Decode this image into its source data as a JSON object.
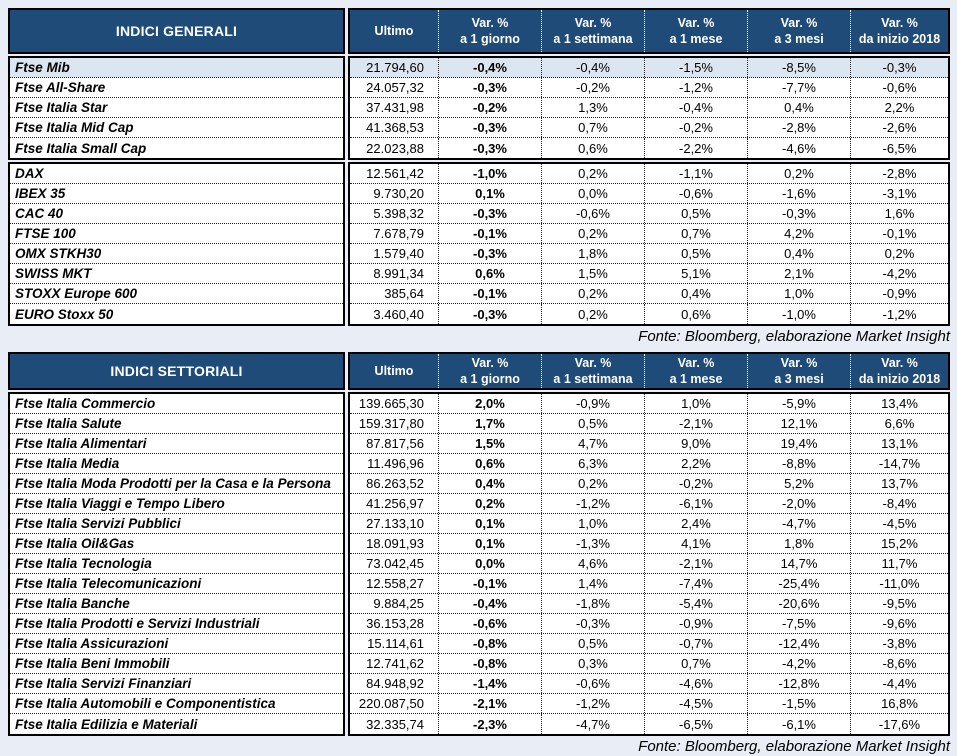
{
  "colors": {
    "header_bg": "#1F4B78",
    "highlight_row": "#DCE6F1",
    "page_bg": "#E9EDF5"
  },
  "source_note": "Fonte: Bloomberg, elaborazione Market Insight",
  "columns": [
    {
      "line1": "Ultimo",
      "line2": ""
    },
    {
      "line1": "Var. %",
      "line2": "a 1 giorno"
    },
    {
      "line1": "Var. %",
      "line2": "a 1 settimana"
    },
    {
      "line1": "Var. %",
      "line2": "a 1 mese"
    },
    {
      "line1": "Var. %",
      "line2": "a 3 mesi"
    },
    {
      "line1": "Var. %",
      "line2": "da inizio 2018"
    }
  ],
  "generali": {
    "title": "INDICI GENERALI",
    "groups": [
      {
        "rows": [
          {
            "label": "Ftse Mib",
            "highlight": true,
            "values": [
              "21.794,60",
              "-0,4%",
              "-0,4%",
              "-1,5%",
              "-8,5%",
              "-0,3%"
            ]
          },
          {
            "label": "Ftse All-Share",
            "values": [
              "24.057,32",
              "-0,3%",
              "-0,2%",
              "-1,2%",
              "-7,7%",
              "-0,6%"
            ]
          },
          {
            "label": "Ftse Italia Star",
            "values": [
              "37.431,98",
              "-0,2%",
              "1,3%",
              "-0,4%",
              "0,4%",
              "2,2%"
            ]
          },
          {
            "label": "Ftse Italia Mid Cap",
            "values": [
              "41.368,53",
              "-0,3%",
              "0,7%",
              "-0,2%",
              "-2,8%",
              "-2,6%"
            ]
          },
          {
            "label": "Ftse Italia Small Cap",
            "values": [
              "22.023,88",
              "-0,3%",
              "0,6%",
              "-2,2%",
              "-4,6%",
              "-6,5%"
            ]
          }
        ]
      },
      {
        "rows": [
          {
            "label": "DAX",
            "values": [
              "12.561,42",
              "-1,0%",
              "0,2%",
              "-1,1%",
              "0,2%",
              "-2,8%"
            ]
          },
          {
            "label": "IBEX 35",
            "values": [
              "9.730,20",
              "0,1%",
              "0,0%",
              "-0,6%",
              "-1,6%",
              "-3,1%"
            ]
          },
          {
            "label": "CAC 40",
            "values": [
              "5.398,32",
              "-0,3%",
              "-0,6%",
              "0,5%",
              "-0,3%",
              "1,6%"
            ]
          },
          {
            "label": "FTSE 100",
            "values": [
              "7.678,79",
              "-0,1%",
              "0,2%",
              "0,7%",
              "4,2%",
              "-0,1%"
            ]
          },
          {
            "label": "OMX STKH30",
            "values": [
              "1.579,40",
              "-0,3%",
              "1,8%",
              "0,5%",
              "0,4%",
              "0,2%"
            ]
          },
          {
            "label": "SWISS MKT",
            "values": [
              "8.991,34",
              "0,6%",
              "1,5%",
              "5,1%",
              "2,1%",
              "-4,2%"
            ]
          },
          {
            "label": "STOXX Europe 600",
            "values": [
              "385,64",
              "-0,1%",
              "0,2%",
              "0,4%",
              "1,0%",
              "-0,9%"
            ]
          },
          {
            "label": "EURO Stoxx 50",
            "values": [
              "3.460,40",
              "-0,3%",
              "0,2%",
              "0,6%",
              "-1,0%",
              "-1,2%"
            ]
          }
        ]
      }
    ]
  },
  "settoriali": {
    "title": "INDICI SETTORIALI",
    "groups": [
      {
        "rows": [
          {
            "label": "Ftse Italia Commercio",
            "values": [
              "139.665,30",
              "2,0%",
              "-0,9%",
              "1,0%",
              "-5,9%",
              "13,4%"
            ]
          },
          {
            "label": "Ftse Italia Salute",
            "values": [
              "159.317,80",
              "1,7%",
              "0,5%",
              "-2,1%",
              "12,1%",
              "6,6%"
            ]
          },
          {
            "label": "Ftse Italia Alimentari",
            "values": [
              "87.817,56",
              "1,5%",
              "4,7%",
              "9,0%",
              "19,4%",
              "13,1%"
            ]
          },
          {
            "label": "Ftse Italia Media",
            "values": [
              "11.496,96",
              "0,6%",
              "6,3%",
              "2,2%",
              "-8,8%",
              "-14,7%"
            ]
          },
          {
            "label": "Ftse Italia Moda Prodotti per la Casa e la Persona",
            "values": [
              "86.263,52",
              "0,4%",
              "0,2%",
              "-0,2%",
              "5,2%",
              "13,7%"
            ]
          },
          {
            "label": "Ftse Italia Viaggi e Tempo Libero",
            "values": [
              "41.256,97",
              "0,2%",
              "-1,2%",
              "-6,1%",
              "-2,0%",
              "-8,4%"
            ]
          },
          {
            "label": "Ftse Italia Servizi Pubblici",
            "values": [
              "27.133,10",
              "0,1%",
              "1,0%",
              "2,4%",
              "-4,7%",
              "-4,5%"
            ]
          },
          {
            "label": "Ftse Italia Oil&Gas",
            "values": [
              "18.091,93",
              "0,1%",
              "-1,3%",
              "4,1%",
              "1,8%",
              "15,2%"
            ]
          },
          {
            "label": "Ftse Italia Tecnologia",
            "values": [
              "73.042,45",
              "0,0%",
              "4,6%",
              "-2,1%",
              "14,7%",
              "11,7%"
            ]
          },
          {
            "label": "Ftse Italia Telecomunicazioni",
            "values": [
              "12.558,27",
              "-0,1%",
              "1,4%",
              "-7,4%",
              "-25,4%",
              "-11,0%"
            ]
          },
          {
            "label": "Ftse Italia Banche",
            "values": [
              "9.884,25",
              "-0,4%",
              "-1,8%",
              "-5,4%",
              "-20,6%",
              "-9,5%"
            ]
          },
          {
            "label": "Ftse Italia Prodotti e Servizi Industriali",
            "values": [
              "36.153,28",
              "-0,6%",
              "-0,3%",
              "-0,9%",
              "-7,5%",
              "-9,6%"
            ]
          },
          {
            "label": "Ftse Italia Assicurazioni",
            "values": [
              "15.114,61",
              "-0,8%",
              "0,5%",
              "-0,7%",
              "-12,4%",
              "-3,8%"
            ]
          },
          {
            "label": "Ftse Italia Beni Immobili",
            "values": [
              "12.741,62",
              "-0,8%",
              "0,3%",
              "0,7%",
              "-4,2%",
              "-8,6%"
            ]
          },
          {
            "label": "Ftse Italia Servizi Finanziari",
            "values": [
              "84.948,92",
              "-1,4%",
              "-0,6%",
              "-4,6%",
              "-12,8%",
              "-4,4%"
            ]
          },
          {
            "label": "Ftse Italia Automobili e Componentistica",
            "values": [
              "220.087,50",
              "-2,1%",
              "-1,2%",
              "-4,5%",
              "-1,5%",
              "16,8%"
            ]
          },
          {
            "label": "Ftse Italia Edilizia e Materiali",
            "values": [
              "32.335,74",
              "-2,3%",
              "-4,7%",
              "-6,5%",
              "-6,1%",
              "-17,6%"
            ]
          }
        ]
      }
    ]
  }
}
